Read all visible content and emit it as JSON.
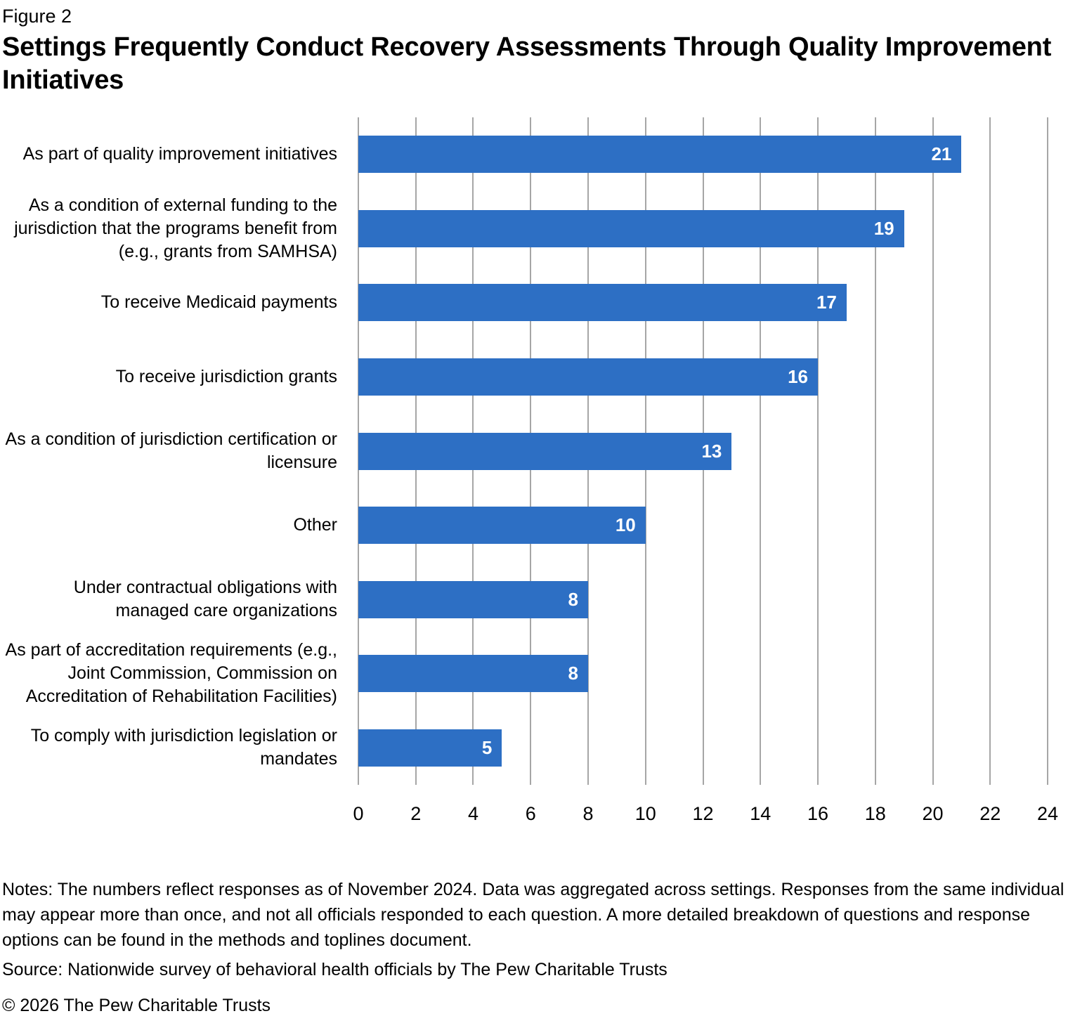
{
  "figure_label": "Figure 2",
  "title": "Settings Frequently Conduct Recovery Assessments Through Quality Improvement Initiatives",
  "chart_data": {
    "type": "bar",
    "orientation": "horizontal",
    "title": "Settings Frequently Conduct Recovery Assessments Through Quality Improvement Initiatives",
    "categories": [
      "As part of quality improvement initiatives",
      "As a condition of external funding to the jurisdiction that the programs benefit from (e.g., grants from SAMHSA)",
      "To receive Medicaid payments",
      "To receive jurisdiction grants",
      "As a condition of jurisdiction certification or licensure",
      "Other",
      "Under contractual obligations with managed care organizations",
      "As part of accreditation requirements (e.g., Joint Commission, Commission on Accreditation of Rehabilitation Facilities)",
      "To comply with jurisdiction legislation or mandates"
    ],
    "values": [
      21,
      19,
      17,
      16,
      13,
      10,
      8,
      8,
      5
    ],
    "xlabel": "",
    "ylabel": "",
    "xlim": [
      0,
      24
    ],
    "xticks": [
      0,
      2,
      4,
      6,
      8,
      10,
      12,
      14,
      16,
      18,
      20,
      22,
      24
    ],
    "grid": "vertical gridlines at every x tick",
    "legend": "none",
    "bar_color": "#2D6FC4",
    "gridline_color": "#A6A6A6",
    "value_label_color": "#FFFFFF",
    "text_color": "#000000"
  },
  "notes": "Notes: The numbers reflect responses as of November 2024. Data was aggregated across settings. Responses from the same individual may appear more than once, and not all officials responded to each question. A more detailed breakdown of questions and response options can be found in the methods and toplines document.",
  "source": "Source: Nationwide survey of behavioral health officials by The Pew Charitable Trusts",
  "copyright": "© 2026 The Pew Charitable Trusts"
}
